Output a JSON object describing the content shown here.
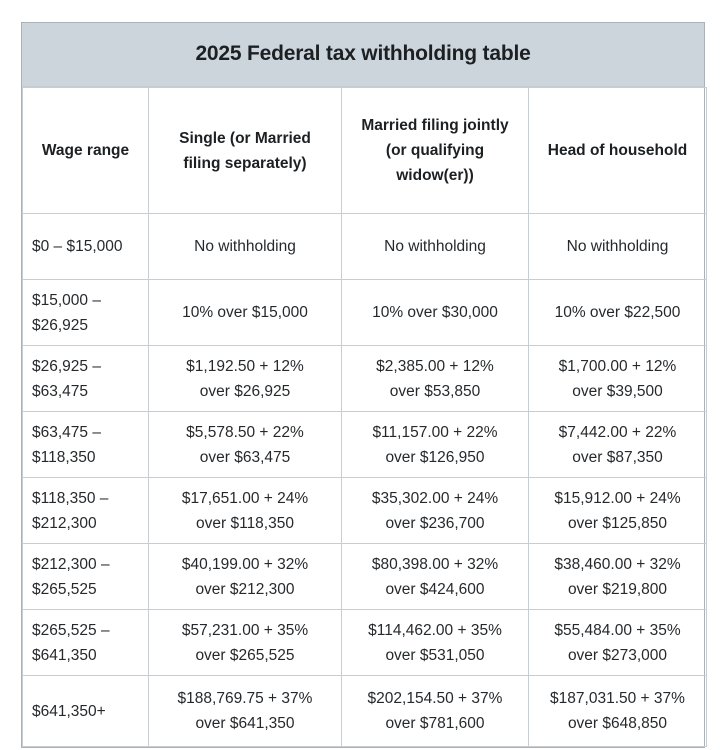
{
  "colors": {
    "title_band_background": "#ccd5dc",
    "cell_border": "#c8cdd2",
    "outer_border": "#aab1b7",
    "text": "#212427",
    "page_background": "#ffffff"
  },
  "chart_data": {
    "type": "table",
    "title": "2025 Federal tax withholding table",
    "columns": [
      "Wage range",
      "Single (or Married\nfiling separately)",
      "Married filing jointly\n(or qualifying\nwidow(er))",
      "Head of household"
    ],
    "rows": [
      [
        "$0 – $15,000",
        "No withholding",
        "No withholding",
        "No withholding"
      ],
      [
        "$15,000 –\n$26,925",
        "10% over $15,000",
        "10% over $30,000",
        "10% over $22,500"
      ],
      [
        "$26,925 –\n$63,475",
        "$1,192.50 + 12%\nover $26,925",
        "$2,385.00 + 12%\nover $53,850",
        "$1,700.00 + 12%\nover $39,500"
      ],
      [
        "$63,475 –\n$118,350",
        "$5,578.50 + 22%\nover $63,475",
        "$11,157.00 + 22%\nover $126,950",
        "$7,442.00 + 22%\nover $87,350"
      ],
      [
        "$118,350 –\n$212,300",
        "$17,651.00 + 24%\nover $118,350",
        "$35,302.00 + 24%\nover $236,700",
        "$15,912.00 + 24%\nover $125,850"
      ],
      [
        "$212,300 –\n$265,525",
        "$40,199.00 + 32%\nover $212,300",
        "$80,398.00 + 32%\nover $424,600",
        "$38,460.00 + 32%\nover $219,800"
      ],
      [
        "$265,525 –\n$641,350",
        "$57,231.00 + 35%\nover $265,525",
        "$114,462.00 + 35%\nover $531,050",
        "$55,484.00 + 35%\nover $273,000"
      ],
      [
        "$641,350+",
        "$188,769.75 + 37%\nover $641,350",
        "$202,154.50 + 37%\nover $781,600",
        "$187,031.50 + 37%\nover $648,850"
      ]
    ]
  }
}
